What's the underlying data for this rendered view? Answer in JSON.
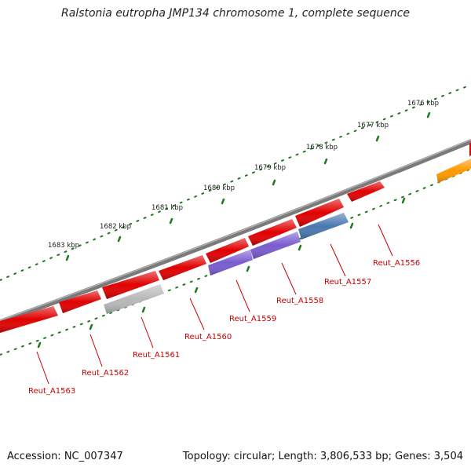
{
  "title": "Ralstonia eutropha JMP134 chromosome 1, complete sequence",
  "footer": {
    "accession": "Accession: NC_007347",
    "summary": "Topology: circular; Length: 3,806,533 bp; Genes: 3,504"
  },
  "kbp_labels": [
    "1676 kbp",
    "1677 kbp",
    "1678 kbp",
    "1679 kbp",
    "1680 kbp",
    "1681 kbp",
    "1682 kbp",
    "1683 kbp"
  ],
  "genes": [
    {
      "label": "Reut_A1556",
      "color": "#e00000",
      "strand": "forward"
    },
    {
      "label": "Reut_A1557",
      "color": "#4a78b0",
      "strand": "reverse"
    },
    {
      "label": "Reut_A1558",
      "color": "#7a5cd0",
      "strand": "reverse"
    },
    {
      "label": "Reut_A1559",
      "color": "#7a5cd0",
      "strand": "reverse"
    },
    {
      "label": "Reut_A1560",
      "color": "#e00000",
      "strand": "forward"
    },
    {
      "label": "Reut_A1561",
      "color": "#b8b8b8",
      "strand": "reverse"
    },
    {
      "label": "Reut_A1562",
      "color": "#e00000",
      "strand": "forward"
    },
    {
      "label": "Reut_A1563",
      "color": "#e00000",
      "strand": "forward"
    }
  ],
  "colors": {
    "backbone": "#7a7a7a",
    "tick": "#1f7a1f",
    "label": "#cc0000",
    "forward_gene": "#e00000",
    "orange_gene": "#ff9900"
  }
}
